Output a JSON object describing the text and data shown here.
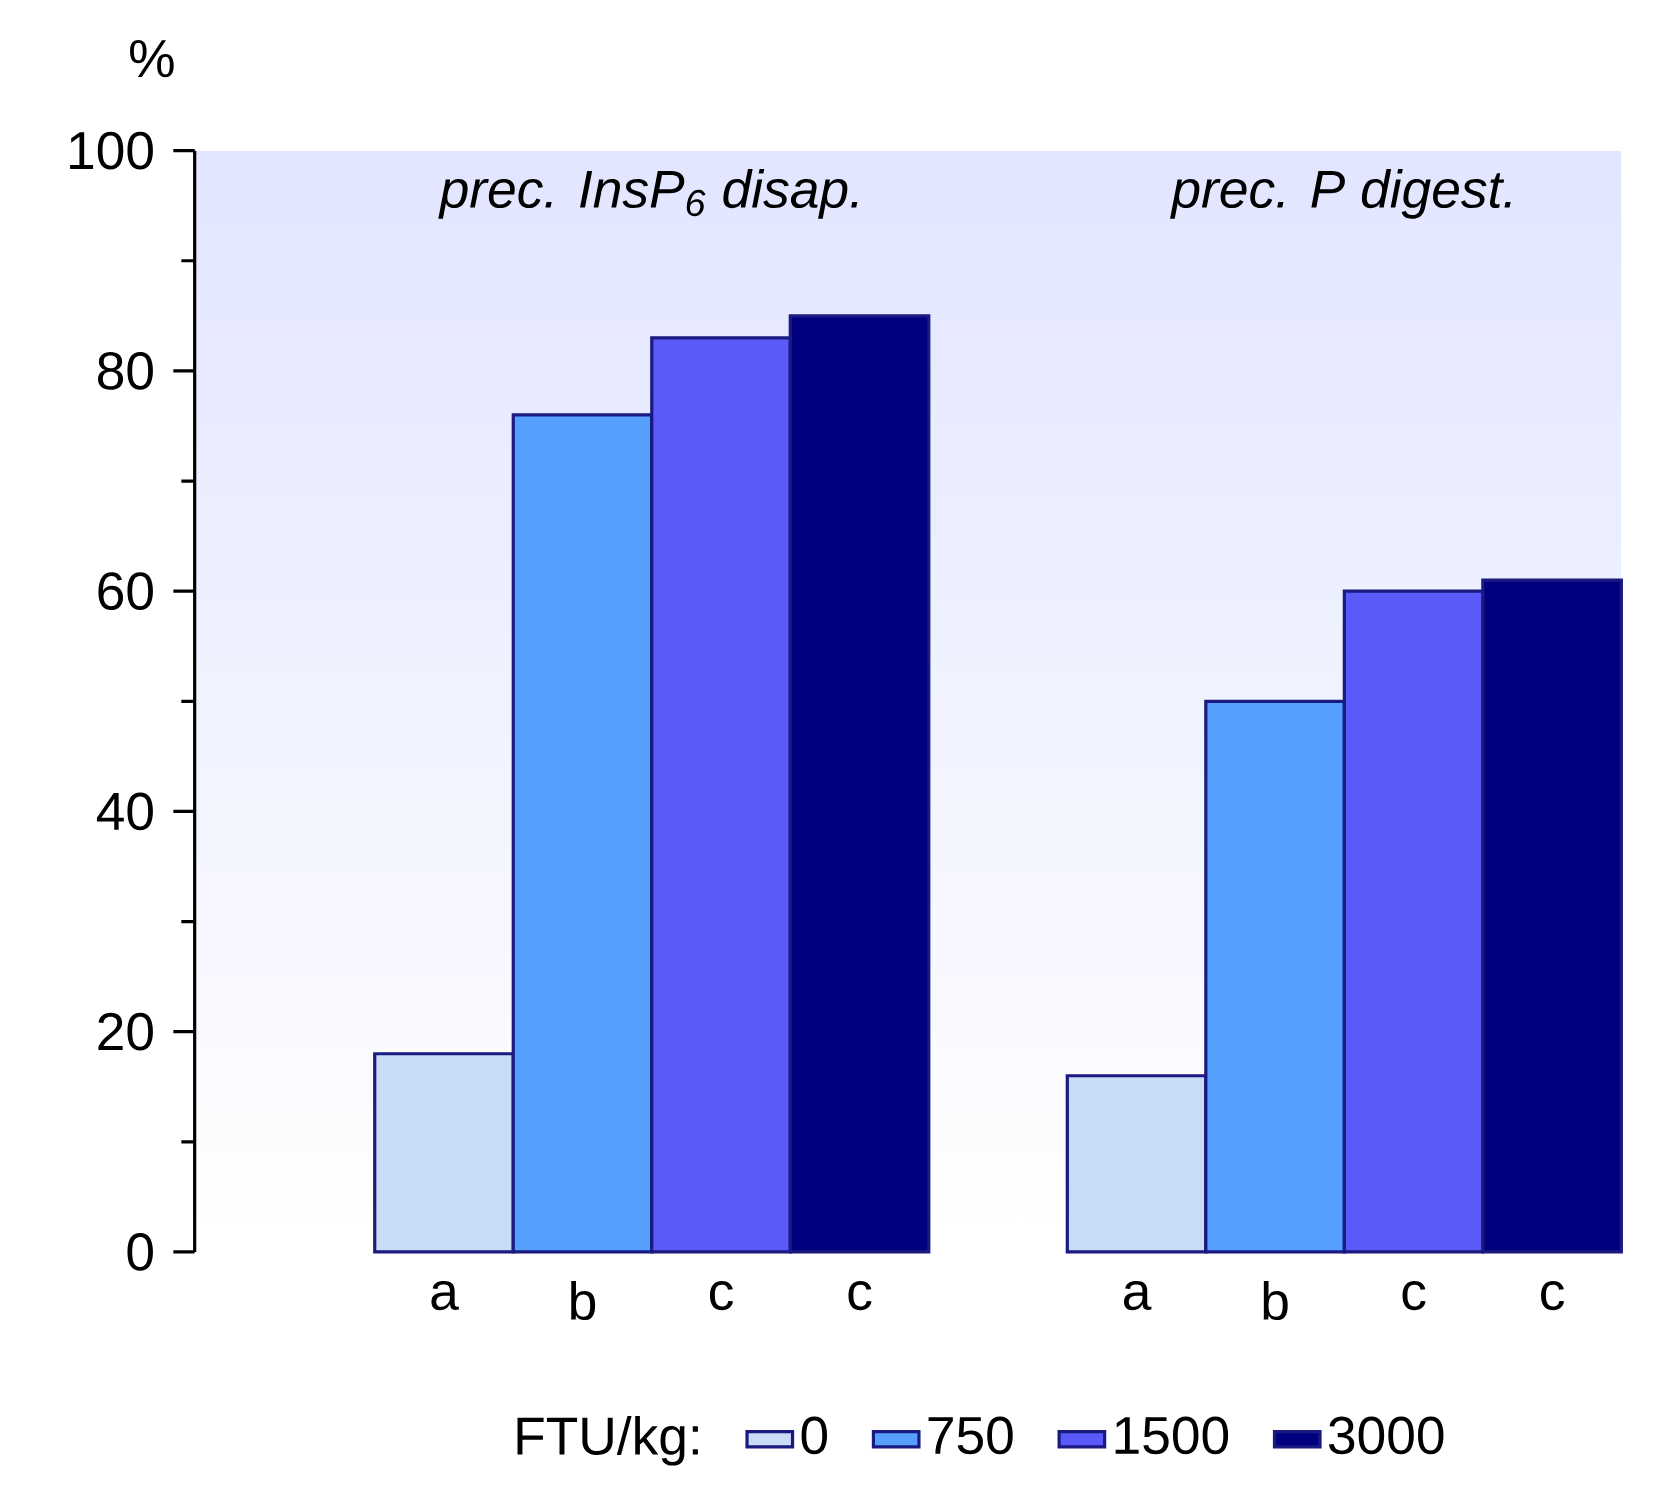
{
  "chart_data": {
    "type": "bar",
    "categories": [
      "a",
      "b",
      "c",
      "c",
      null,
      "a",
      "b",
      "c",
      "c"
    ],
    "series": [
      {
        "name": "0",
        "color": "#c8dcf6",
        "values": [
          18,
          null,
          null,
          null,
          null,
          16,
          null,
          null,
          null
        ]
      },
      {
        "name": "750",
        "color": "#55a0fd",
        "values": [
          null,
          76,
          null,
          null,
          null,
          null,
          50,
          null,
          null
        ]
      },
      {
        "name": "1500",
        "color": "#5a5af8",
        "values": [
          null,
          null,
          83,
          null,
          null,
          null,
          null,
          60,
          null
        ]
      },
      {
        "name": "3000",
        "color": "#00007f",
        "values": [
          null,
          null,
          null,
          85,
          null,
          null,
          null,
          null,
          61
        ]
      }
    ],
    "ylabel": "%",
    "legend_title": "FTU/kg:",
    "annotations": [
      "prec. InsP$_{6}$ disap.",
      "prec. P digest."
    ],
    "ylim": [
      0,
      100
    ],
    "yticks": [
      0,
      20,
      40,
      60,
      80,
      100
    ],
    "legend": "bottom"
  }
}
